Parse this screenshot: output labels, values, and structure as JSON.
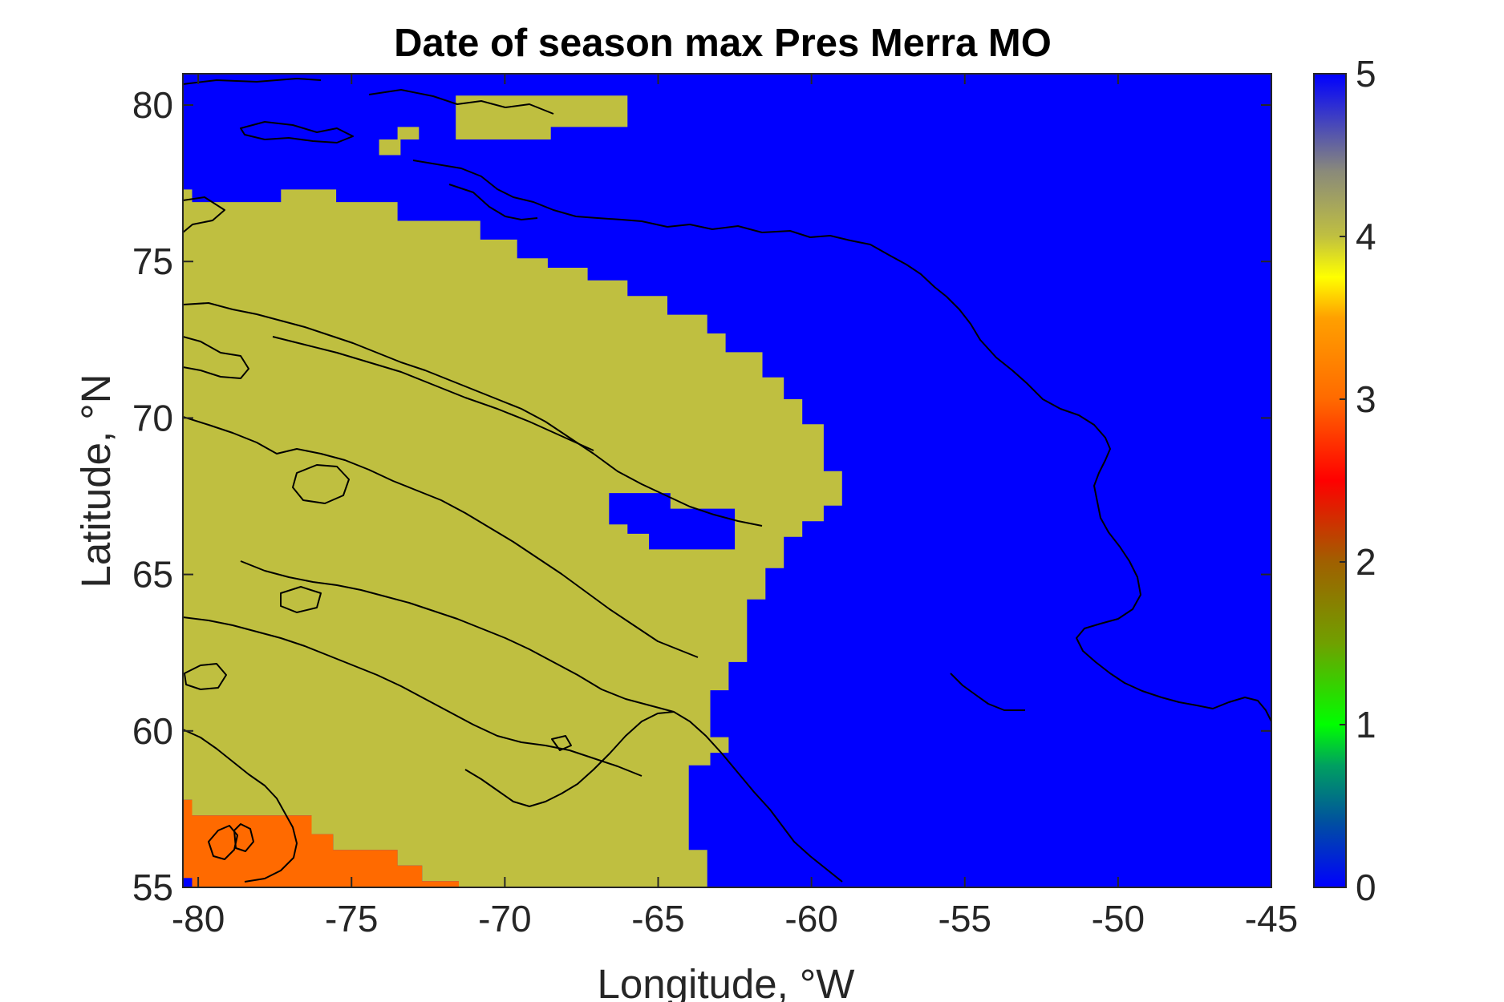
{
  "chart_data": {
    "type": "heatmap",
    "title": "Date of season max Pres Merra MO",
    "xlabel": "Longitude, °W",
    "ylabel": "Latitude, °N",
    "xlim": [
      -80.5,
      -45
    ],
    "ylim": [
      55,
      81
    ],
    "xticks": [
      -80,
      -75,
      -70,
      -65,
      -60,
      -55,
      -50,
      -45
    ],
    "yticks": [
      55,
      60,
      65,
      70,
      75,
      80
    ],
    "xtick_labels": [
      "-80",
      "-75",
      "-70",
      "-65",
      "-60",
      "-55",
      "-50",
      "-45"
    ],
    "ytick_labels": [
      "55",
      "60",
      "65",
      "70",
      "75",
      "80"
    ],
    "colorbar": {
      "limits": [
        0,
        5
      ],
      "ticks": [
        0,
        1,
        2,
        3,
        4,
        5
      ],
      "tick_labels": [
        "0",
        "1",
        "2",
        "3",
        "4",
        "5"
      ]
    },
    "background_value": 5,
    "regions": [
      {
        "value": 4,
        "polygon": [
          [
            -80.5,
            77.3
          ],
          [
            -80.2,
            77.3
          ],
          [
            -80.2,
            76.9
          ],
          [
            -77.3,
            76.9
          ],
          [
            -77.3,
            77.3
          ],
          [
            -75.5,
            77.3
          ],
          [
            -75.5,
            76.9
          ],
          [
            -73.5,
            76.9
          ],
          [
            -73.5,
            76.3
          ],
          [
            -70.8,
            76.3
          ],
          [
            -70.8,
            75.7
          ],
          [
            -69.6,
            75.7
          ],
          [
            -69.6,
            75.1
          ],
          [
            -68.6,
            75.1
          ],
          [
            -68.6,
            74.8
          ],
          [
            -67.3,
            74.8
          ],
          [
            -67.3,
            74.4
          ],
          [
            -66.0,
            74.4
          ],
          [
            -66.0,
            73.9
          ],
          [
            -64.7,
            73.9
          ],
          [
            -64.7,
            73.3
          ],
          [
            -63.4,
            73.3
          ],
          [
            -63.4,
            72.7
          ],
          [
            -62.8,
            72.7
          ],
          [
            -62.8,
            72.1
          ],
          [
            -61.6,
            72.1
          ],
          [
            -61.6,
            71.3
          ],
          [
            -60.9,
            71.3
          ],
          [
            -60.9,
            70.6
          ],
          [
            -60.3,
            70.6
          ],
          [
            -60.3,
            69.8
          ],
          [
            -59.6,
            69.8
          ],
          [
            -59.6,
            68.3
          ],
          [
            -59.0,
            68.3
          ],
          [
            -59.0,
            67.2
          ],
          [
            -59.6,
            67.2
          ],
          [
            -59.6,
            66.7
          ],
          [
            -60.3,
            66.7
          ],
          [
            -60.3,
            66.2
          ],
          [
            -60.9,
            66.2
          ],
          [
            -60.9,
            65.2
          ],
          [
            -61.5,
            65.2
          ],
          [
            -61.5,
            64.2
          ],
          [
            -62.1,
            64.2
          ],
          [
            -62.1,
            62.2
          ],
          [
            -62.7,
            62.2
          ],
          [
            -62.7,
            61.3
          ],
          [
            -63.3,
            61.3
          ],
          [
            -63.3,
            59.8
          ],
          [
            -62.7,
            59.8
          ],
          [
            -62.7,
            59.3
          ],
          [
            -63.3,
            59.3
          ],
          [
            -63.3,
            58.9
          ],
          [
            -64.0,
            58.9
          ],
          [
            -64.0,
            56.2
          ],
          [
            -63.4,
            56.2
          ],
          [
            -63.4,
            55
          ],
          [
            -71.5,
            55
          ],
          [
            -71.5,
            55.2
          ],
          [
            -72.7,
            55.2
          ],
          [
            -72.7,
            55.7
          ],
          [
            -73.5,
            55.7
          ],
          [
            -73.5,
            56.2
          ],
          [
            -75.6,
            56.2
          ],
          [
            -75.6,
            56.7
          ],
          [
            -76.3,
            56.7
          ],
          [
            -76.3,
            57.3
          ],
          [
            -80.2,
            57.3
          ],
          [
            -80.2,
            57.8
          ],
          [
            -80.5,
            57.8
          ]
        ]
      },
      {
        "value": 4,
        "polygon": [
          [
            -71.6,
            80.3
          ],
          [
            -66.0,
            80.3
          ],
          [
            -66.0,
            79.3
          ],
          [
            -68.5,
            79.3
          ],
          [
            -68.5,
            78.9
          ],
          [
            -71.6,
            78.9
          ]
        ]
      },
      {
        "value": 4,
        "polygon": [
          [
            -72.8,
            79.3
          ],
          [
            -72.8,
            78.9
          ],
          [
            -73.4,
            78.9
          ],
          [
            -73.4,
            78.4
          ],
          [
            -74.1,
            78.4
          ],
          [
            -74.1,
            78.9
          ],
          [
            -73.5,
            78.9
          ],
          [
            -73.5,
            79.3
          ]
        ]
      },
      {
        "value": 3,
        "polygon": [
          [
            -80.5,
            57.8
          ],
          [
            -80.2,
            57.8
          ],
          [
            -80.2,
            57.3
          ],
          [
            -76.3,
            57.3
          ],
          [
            -76.3,
            56.7
          ],
          [
            -75.6,
            56.7
          ],
          [
            -75.6,
            56.2
          ],
          [
            -73.5,
            56.2
          ],
          [
            -73.5,
            55.7
          ],
          [
            -72.7,
            55.7
          ],
          [
            -72.7,
            55.2
          ],
          [
            -71.5,
            55.2
          ],
          [
            -71.5,
            55
          ],
          [
            -80.5,
            55
          ]
        ]
      },
      {
        "value": 5,
        "polygon": [
          [
            -66.6,
            67.6
          ],
          [
            -64.6,
            67.6
          ],
          [
            -64.6,
            67.1
          ],
          [
            -62.5,
            67.1
          ],
          [
            -62.5,
            65.8
          ],
          [
            -65.3,
            65.8
          ],
          [
            -65.3,
            66.3
          ],
          [
            -66.0,
            66.3
          ],
          [
            -66.0,
            66.6
          ],
          [
            -66.6,
            66.6
          ]
        ]
      },
      {
        "value": 5,
        "polygon": [
          [
            -80.5,
            55.3
          ],
          [
            -80.2,
            55.3
          ],
          [
            -80.2,
            55
          ],
          [
            -80.5,
            55
          ]
        ]
      }
    ]
  }
}
